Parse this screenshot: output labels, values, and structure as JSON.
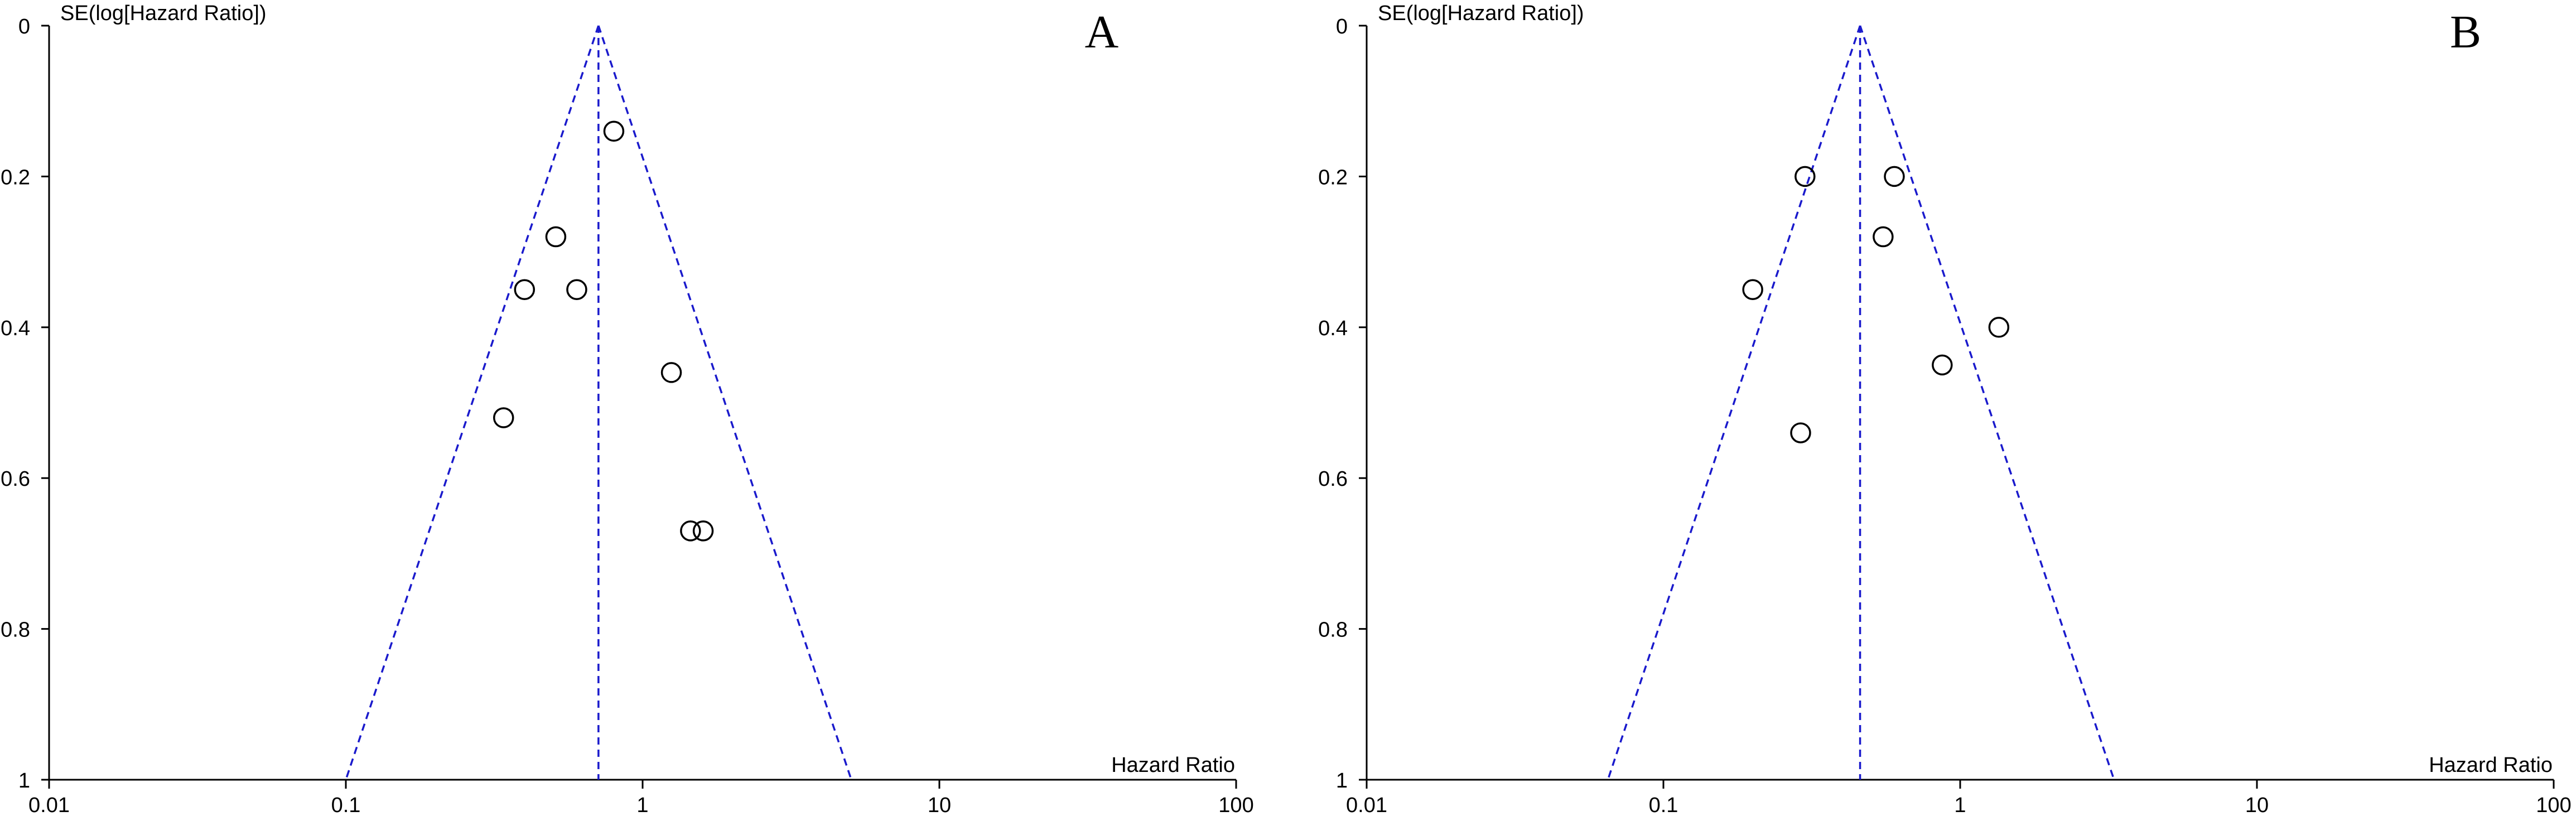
{
  "chart_data": [
    {
      "type": "scatter",
      "panel_label": "A",
      "ylabel": "SE(log[Hazard Ratio])",
      "xlabel": "Hazard Ratio",
      "x_scale": "log",
      "xlim": [
        0.01,
        100
      ],
      "ylim": [
        0,
        1
      ],
      "y_inverted": true,
      "x_tick_labels": [
        "0.01",
        "0.1",
        "1",
        "10",
        "100"
      ],
      "y_tick_labels": [
        "0",
        "0.2",
        "0.4",
        "0.6",
        "0.8",
        "1"
      ],
      "pooled_estimate": 0.71,
      "funnel": {
        "apex": [
          0.71,
          0
        ],
        "base_left": [
          0.1,
          1
        ],
        "base_right": [
          5.05,
          1
        ],
        "color": "#1a1acc"
      },
      "points": [
        {
          "x": 0.8,
          "y": 0.14
        },
        {
          "x": 0.51,
          "y": 0.28
        },
        {
          "x": 0.4,
          "y": 0.35
        },
        {
          "x": 0.6,
          "y": 0.35
        },
        {
          "x": 1.25,
          "y": 0.46
        },
        {
          "x": 0.34,
          "y": 0.52
        },
        {
          "x": 1.45,
          "y": 0.67
        },
        {
          "x": 1.6,
          "y": 0.67
        }
      ]
    },
    {
      "type": "scatter",
      "panel_label": "B",
      "ylabel": "SE(log[Hazard Ratio])",
      "xlabel": "Hazard Ratio",
      "x_scale": "log",
      "xlim": [
        0.01,
        100
      ],
      "ylim": [
        0,
        1
      ],
      "y_inverted": true,
      "x_tick_labels": [
        "0.01",
        "0.1",
        "1",
        "10",
        "100"
      ],
      "y_tick_labels": [
        "0",
        "0.2",
        "0.4",
        "0.6",
        "0.8",
        "1"
      ],
      "pooled_estimate": 0.46,
      "funnel": {
        "apex": [
          0.46,
          0
        ],
        "base_left": [
          0.065,
          1
        ],
        "base_right": [
          3.3,
          1
        ],
        "color": "#1a1acc"
      },
      "points": [
        {
          "x": 0.3,
          "y": 0.2
        },
        {
          "x": 0.6,
          "y": 0.2
        },
        {
          "x": 0.55,
          "y": 0.28
        },
        {
          "x": 0.2,
          "y": 0.35
        },
        {
          "x": 1.35,
          "y": 0.4
        },
        {
          "x": 0.87,
          "y": 0.45
        },
        {
          "x": 0.29,
          "y": 0.54
        }
      ]
    }
  ]
}
